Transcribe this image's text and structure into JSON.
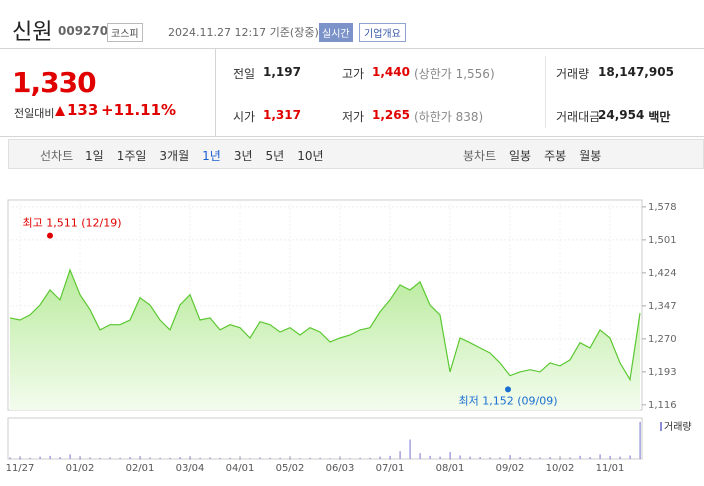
{
  "header": {
    "name": "신원",
    "code": "009270",
    "market": "코스피",
    "timestamp": "2024.11.27 12:17 기준(장중)",
    "realtime": "실시간",
    "company_info": "기업개요"
  },
  "quote": {
    "price": "1,330",
    "change_label": "전일대비",
    "change": "133",
    "change_pct": "+11.11%",
    "fields": [
      {
        "label": "전일",
        "value": "1,197"
      },
      {
        "label": "고가",
        "value": "1,440",
        "note": "(상한가 1,556)"
      },
      {
        "label": "거래량",
        "value": "18,147,905"
      },
      {
        "label": "시가",
        "value": "1,317"
      },
      {
        "label": "저가",
        "value": "1,265",
        "note": "(하한가 838)"
      },
      {
        "label": "거래대금",
        "value": "24,954",
        "unit": "백만"
      }
    ]
  },
  "tabs": {
    "line_label": "선차트",
    "line_periods": [
      "1일",
      "1주일",
      "3개월",
      "1년",
      "3년",
      "5년",
      "10년"
    ],
    "selected": "1년",
    "candle_label": "봉차트",
    "candle_periods": [
      "일봉",
      "주봉",
      "월봉"
    ]
  },
  "chart_data": {
    "type": "line",
    "color": "#5cc832",
    "categories": [
      null,
      "11/27",
      null,
      null,
      null,
      null,
      null,
      "01/02",
      null,
      null,
      null,
      null,
      null,
      "02/01",
      null,
      null,
      null,
      null,
      "03/04",
      null,
      null,
      null,
      null,
      "04/01",
      null,
      null,
      null,
      null,
      "05/02",
      null,
      null,
      null,
      null,
      "06/03",
      null,
      null,
      null,
      null,
      "07/01",
      null,
      null,
      null,
      null,
      null,
      "08/01",
      null,
      null,
      null,
      null,
      null,
      "09/02",
      null,
      null,
      null,
      null,
      "10/02",
      null,
      null,
      null,
      null,
      "11/01",
      null,
      null,
      null
    ],
    "values": [
      1319,
      1314,
      1326,
      1349,
      1384,
      1361,
      1431,
      1373,
      1338,
      1291,
      1303,
      1303,
      1314,
      1366,
      1349,
      1314,
      1291,
      1349,
      1373,
      1314,
      1319,
      1291,
      1303,
      1296,
      1272,
      1310,
      1303,
      1286,
      1296,
      1279,
      1296,
      1286,
      1263,
      1272,
      1279,
      1291,
      1296,
      1333,
      1361,
      1396,
      1384,
      1403,
      1349,
      1326,
      1193,
      1272,
      1261,
      1249,
      1237,
      1214,
      1184,
      1193,
      1198,
      1193,
      1214,
      1207,
      1221,
      1261,
      1249,
      1291,
      1272,
      1214,
      1175,
      1330
    ],
    "ylim": [
      1104,
      1594
    ],
    "yticks": [
      {
        "value": 1578,
        "label": "1,578"
      },
      {
        "value": 1501,
        "label": "1,501"
      },
      {
        "value": 1424,
        "label": "1,424"
      },
      {
        "value": 1347,
        "label": "1,347"
      },
      {
        "value": 1270,
        "label": "1,270"
      },
      {
        "value": 1193,
        "label": "1,193"
      },
      {
        "value": 1116,
        "label": "1,116"
      }
    ],
    "grid": true,
    "annotations": [
      {
        "text": "최고 1,511 (12/19)",
        "value": 1511,
        "color": "#e00000"
      },
      {
        "text": "최저 1,152 (09/09)",
        "value": 1152,
        "color": "#1a6fd1"
      }
    ],
    "volume": {
      "name": "거래량",
      "color": "#8b8bd8",
      "ylim": [
        0,
        100
      ],
      "values": [
        4,
        5,
        3,
        6,
        8,
        5,
        12,
        6,
        4,
        3,
        4,
        3,
        5,
        7,
        4,
        3,
        3,
        5,
        6,
        3,
        4,
        3,
        3,
        3,
        2,
        4,
        3,
        3,
        3,
        2,
        3,
        3,
        2,
        3,
        2,
        3,
        3,
        6,
        8,
        20,
        50,
        15,
        8,
        6,
        18,
        9,
        6,
        5,
        4,
        4,
        10,
        5,
        4,
        4,
        5,
        3,
        4,
        8,
        5,
        12,
        8,
        6,
        9,
        95
      ]
    }
  }
}
